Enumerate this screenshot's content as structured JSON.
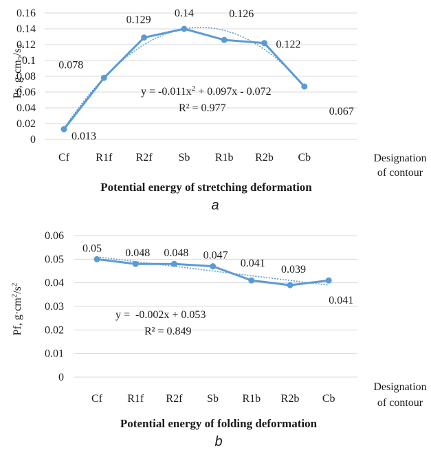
{
  "chart_data": [
    {
      "type": "line",
      "panel_letter": "a",
      "title": "Potential energy of stretching deformation",
      "ylabel": "Ps, g·cm",
      "ylabel_sub1": "2",
      "ylabel_mid": "/s",
      "ylabel_sub2": "2",
      "xlabel_line1": "Designation",
      "xlabel_line2": "of contour",
      "categories": [
        "Cf",
        "R1f",
        "R2f",
        "Sb",
        "R1b",
        "R2b",
        "Cb"
      ],
      "values": [
        0.013,
        0.078,
        0.129,
        0.14,
        0.126,
        0.122,
        0.067
      ],
      "data_labels": [
        "0.013",
        "0.078",
        "0.129",
        "0.14",
        "0.126",
        "0.122",
        "0.067"
      ],
      "yticks": [
        "0",
        "0.02",
        "0.04",
        "0.06",
        "0.08",
        "0.1",
        "0.12",
        "0.14",
        "0.16"
      ],
      "ylim": [
        0,
        0.16
      ],
      "trendline": {
        "type": "polynomial",
        "coefficients": [
          -0.011,
          0.097,
          -0.072
        ],
        "equation_prefix": "y = -0.011x",
        "equation_sup": "2",
        "equation_suffix": " + 0.097x - 0.072",
        "r2": "R² = 0.977"
      },
      "grid": true,
      "series_color": "#5b9bd5"
    },
    {
      "type": "line",
      "panel_letter": "b",
      "title": "Potential energy of folding deformation",
      "ylabel": "Pf, g·cm",
      "ylabel_sup1": "2",
      "ylabel_mid": "/s",
      "ylabel_sup2": "2",
      "xlabel_line1": "Designation",
      "xlabel_line2": "of contour",
      "categories": [
        "Cf",
        "R1f",
        "R2f",
        "Sb",
        "R1b",
        "R2b",
        "Cb"
      ],
      "values": [
        0.05,
        0.048,
        0.048,
        0.047,
        0.041,
        0.039,
        0.041
      ],
      "data_labels": [
        "0.05",
        "0.048",
        "0.048",
        "0.047",
        "0.041",
        "0.039",
        "0.041"
      ],
      "yticks": [
        "0",
        "0.01",
        "0.02",
        "0.03",
        "0.04",
        "0.05",
        "0.06"
      ],
      "ylim": [
        0,
        0.06
      ],
      "trendline": {
        "type": "linear",
        "coefficients": [
          -0.002,
          0.053
        ],
        "equation": "y =  -0.002x + 0.053",
        "r2": "R² = 0.849"
      },
      "grid": true,
      "series_color": "#5b9bd5"
    }
  ]
}
